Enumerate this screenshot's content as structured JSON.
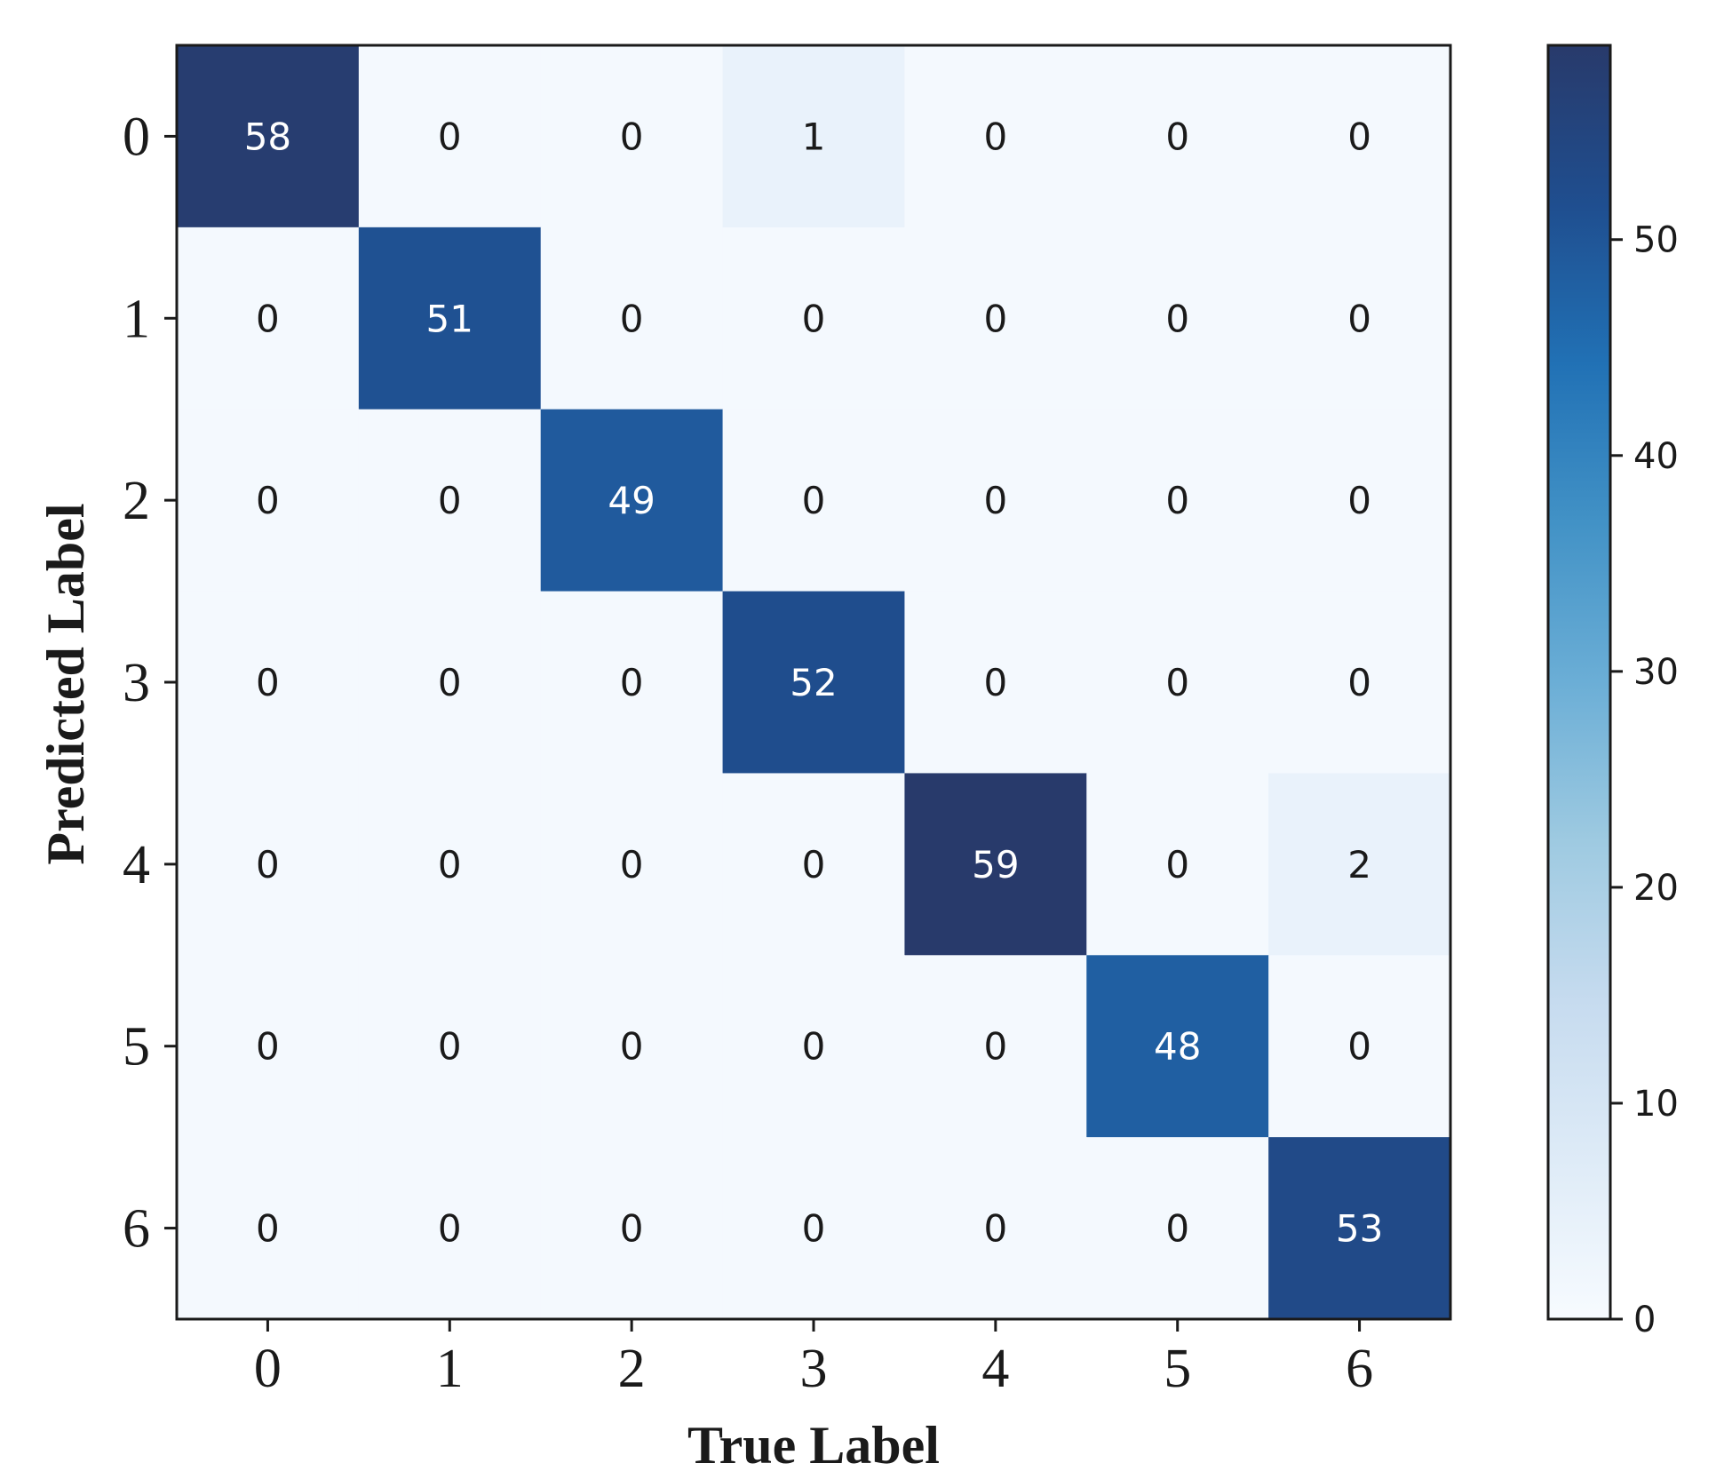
{
  "chart_data": {
    "type": "heatmap",
    "xlabel": "True Label",
    "ylabel": "Predicted Label",
    "x_tick_labels": [
      "0",
      "1",
      "2",
      "3",
      "4",
      "5",
      "6"
    ],
    "y_tick_labels": [
      "0",
      "1",
      "2",
      "3",
      "4",
      "5",
      "6"
    ],
    "matrix": [
      [
        58,
        0,
        0,
        1,
        0,
        0,
        0
      ],
      [
        0,
        51,
        0,
        0,
        0,
        0,
        0
      ],
      [
        0,
        0,
        49,
        0,
        0,
        0,
        0
      ],
      [
        0,
        0,
        0,
        52,
        0,
        0,
        0
      ],
      [
        0,
        0,
        0,
        0,
        59,
        0,
        2
      ],
      [
        0,
        0,
        0,
        0,
        0,
        48,
        0
      ],
      [
        0,
        0,
        0,
        0,
        0,
        0,
        53
      ]
    ],
    "colormap": "Blues",
    "colorbar": {
      "range": [
        0,
        59
      ],
      "ticks": [
        0,
        10,
        20,
        30,
        40,
        50
      ]
    },
    "text_colors": {
      "dark_cell": "#ffffff",
      "light_cell": "#1a1a1a"
    },
    "frame_color": "#1a1a1a"
  }
}
